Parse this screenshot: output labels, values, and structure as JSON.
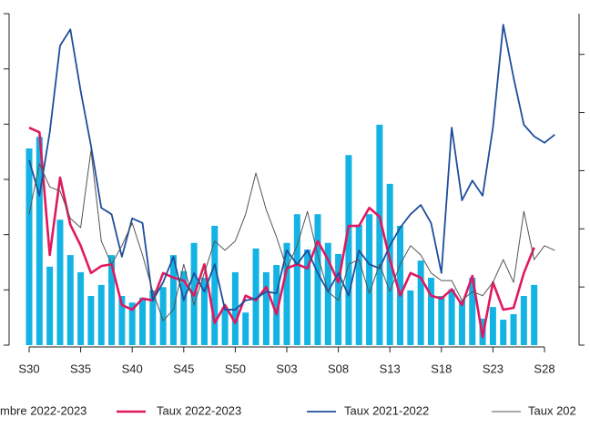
{
  "chart_data": {
    "type": "bar-line",
    "categories": [
      "S30",
      null,
      null,
      null,
      null,
      "S35",
      null,
      null,
      null,
      null,
      "S40",
      null,
      null,
      null,
      null,
      "S45",
      null,
      null,
      null,
      null,
      "S50",
      null,
      null,
      null,
      null,
      "S03",
      null,
      null,
      null,
      null,
      "S08",
      null,
      null,
      null,
      null,
      "S13",
      null,
      null,
      null,
      null,
      "S18",
      null,
      null,
      null,
      null,
      "S23",
      null,
      null,
      null,
      null,
      "S28",
      null
    ],
    "ylim": [
      0,
      6
    ],
    "yticks": [
      0,
      1,
      2,
      3,
      4,
      5,
      6
    ],
    "y2lim": [
      0,
      5.7
    ],
    "y2ticks": [
      0,
      1,
      2,
      3,
      4,
      5
    ],
    "series": [
      {
        "name": "mbre 2022-2023",
        "kind": "bar",
        "color": "#13b3e3",
        "values": [
          3.56,
          3.77,
          1.42,
          2.27,
          1.63,
          1.32,
          0.89,
          1.09,
          1.63,
          0.89,
          0.77,
          0.86,
          0.99,
          1.05,
          1.63,
          1.34,
          1.85,
          1.22,
          2.16,
          0.68,
          1.32,
          0.59,
          1.75,
          1.32,
          1.45,
          1.85,
          2.37,
          1.73,
          2.37,
          1.85,
          1.65,
          3.44,
          2.18,
          2.37,
          3.99,
          2.92,
          2.16,
          0.99,
          1.53,
          1.22,
          0.89,
          1.01,
          0.81,
          1.22,
          0.48,
          0.69,
          0.46,
          0.56,
          0.89,
          1.09,
          null,
          null
        ]
      },
      {
        "name": "Taux 2022-2023",
        "kind": "line",
        "axis": "y2",
        "color": "#e0185f",
        "values": [
          3.74,
          3.66,
          1.55,
          2.88,
          2.07,
          1.71,
          1.24,
          1.36,
          1.39,
          0.69,
          0.61,
          0.8,
          0.77,
          1.24,
          1.16,
          1.11,
          0.85,
          1.39,
          0.38,
          0.69,
          0.38,
          0.85,
          0.77,
          1.0,
          0.53,
          1.32,
          1.39,
          1.32,
          1.79,
          1.47,
          1.08,
          2.05,
          2.05,
          2.36,
          2.21,
          1.47,
          0.85,
          1.24,
          1.16,
          0.85,
          0.8,
          0.96,
          0.69,
          1.19,
          0.14,
          1.08,
          0.61,
          0.64,
          1.24,
          1.68,
          null,
          null
        ]
      },
      {
        "name": "Taux 2021-2022",
        "kind": "line",
        "axis": "y2",
        "color": "#1f4e9c",
        "values": [
          3.18,
          2.57,
          3.66,
          5.15,
          5.43,
          4.37,
          3.43,
          2.36,
          2.25,
          1.52,
          2.18,
          2.1,
          0.77,
          1.08,
          1.52,
          0.77,
          1.24,
          0.92,
          1.39,
          0.61,
          0.61,
          0.77,
          0.8,
          0.92,
          0.89,
          1.63,
          1.39,
          1.63,
          1.24,
          0.92,
          1.24,
          0.85,
          1.63,
          1.39,
          1.32,
          1.71,
          2.02,
          2.25,
          2.41,
          2.1,
          1.24,
          3.74,
          2.49,
          2.83,
          2.57,
          3.74,
          5.51,
          4.6,
          3.79,
          3.59,
          3.48,
          3.62
        ]
      },
      {
        "name": "Taux 202",
        "kind": "line",
        "axis": "y2",
        "color": "#555555",
        "values": [
          2.25,
          3.12,
          2.72,
          2.65,
          2.18,
          2.02,
          3.35,
          1.79,
          1.39,
          1.71,
          2.1,
          1.55,
          0.92,
          0.42,
          0.61,
          1.39,
          0.69,
          1.24,
          1.79,
          1.63,
          1.79,
          2.25,
          2.96,
          2.33,
          1.86,
          1.32,
          1.71,
          2.3,
          1.55,
          0.92,
          0.77,
          1.39,
          1.47,
          0.89,
          1.39,
          0.92,
          1.39,
          1.71,
          1.55,
          1.24,
          1.11,
          1.11,
          0.77,
          0.92,
          0.85,
          1.08,
          1.47,
          1.08,
          2.3,
          1.47,
          1.71,
          1.63
        ]
      }
    ]
  }
}
